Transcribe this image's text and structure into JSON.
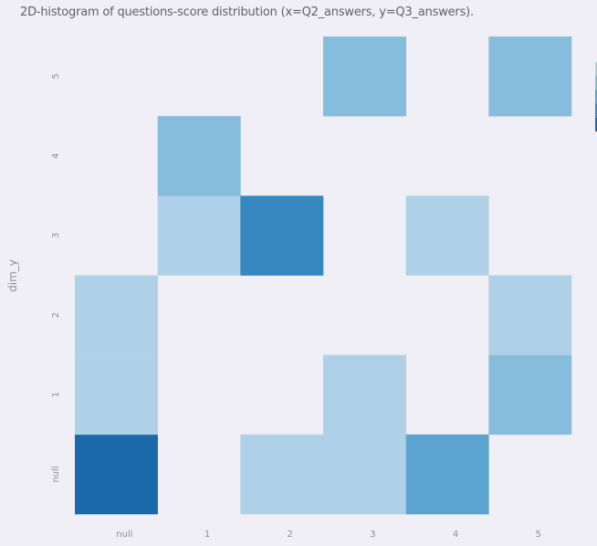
{
  "title": "2D-histogram of questions-score distribution (x=Q2_answers, y=Q3_answers).",
  "colors": {
    "background": "#f0eff5",
    "scale": [
      "#f0eff5",
      "#afd1e7",
      "#86bcdc",
      "#5ba3d0",
      "#3787c0",
      "#1b69ab"
    ]
  },
  "chart_data": {
    "type": "heatmap",
    "title": "2D-histogram of questions-score distribution (x=Q2_answers, y=Q3_answers).",
    "xlabel": "",
    "ylabel": "dim_y",
    "x_categories": [
      "null",
      "1",
      "2",
      "3",
      "4",
      "5"
    ],
    "y_categories": [
      "null",
      "1",
      "2",
      "3",
      "4",
      "5"
    ],
    "z_max": 5,
    "z": [
      [
        5,
        0,
        1,
        1,
        3,
        0
      ],
      [
        1,
        0,
        0,
        1,
        0,
        2
      ],
      [
        1,
        0,
        0,
        0,
        0,
        1
      ],
      [
        0,
        1,
        4,
        0,
        1,
        0
      ],
      [
        0,
        2,
        0,
        0,
        0,
        0
      ],
      [
        0,
        0,
        0,
        2,
        0,
        2
      ]
    ]
  }
}
